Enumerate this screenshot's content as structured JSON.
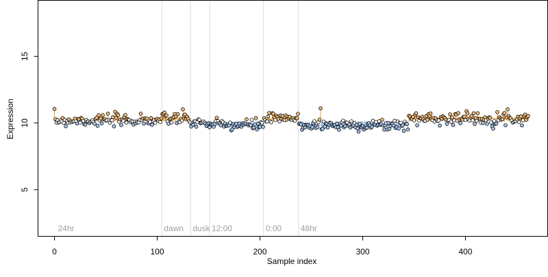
{
  "chart_data": {
    "type": "scatter",
    "xlabel": "Sample index",
    "ylabel": "Expression",
    "xlim": [
      -16,
      480
    ],
    "ylim": [
      1.5,
      19.2
    ],
    "x_ticks": [
      0,
      100,
      200,
      300,
      400
    ],
    "y_ticks": [
      5,
      10,
      15
    ],
    "baseline": 10.12,
    "n_points": 462,
    "annotations": [
      {
        "x": 104.5,
        "label": "dawn"
      },
      {
        "x": 132.5,
        "label": "dusk"
      },
      {
        "x": 151.0,
        "label": "12:00"
      },
      {
        "x": 203.5,
        "label": "0:00"
      },
      {
        "x": 237.5,
        "label": "48hr"
      }
    ],
    "start_label": "24hr",
    "start_label_x": 2,
    "level_segments": [
      {
        "x_start": 0,
        "x_end": 105,
        "value": 10.2
      },
      {
        "x_start": 105,
        "x_end": 133,
        "value": 10.3
      },
      {
        "x_start": 133,
        "x_end": 151,
        "value": 10.0
      },
      {
        "x_start": 151,
        "x_end": 204,
        "value": 9.85
      },
      {
        "x_start": 204,
        "x_end": 238,
        "value": 10.3
      },
      {
        "x_start": 238,
        "x_end": 345,
        "value": 9.85
      },
      {
        "x_start": 345,
        "x_end": 462,
        "value": 10.35
      }
    ],
    "colors": {
      "high": "#f5c07a",
      "low": "#a9c8ee",
      "baseline_point": "#ffffff",
      "stem": "#e8a040",
      "vline": "#dcdcdc",
      "annotation_text": "#a0a0a0"
    }
  }
}
